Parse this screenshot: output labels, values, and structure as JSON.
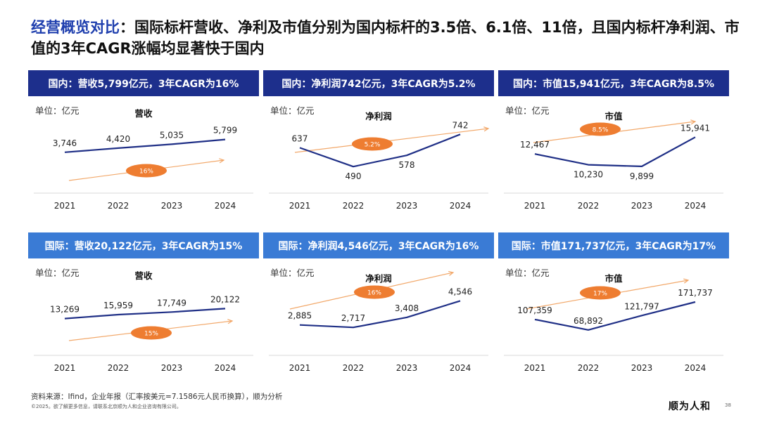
{
  "title": {
    "highlight": "经营概览对比",
    "rest": "：国际标杆营收、净利及市值分别为国内标杆的3.5倍、6.1倍、11倍，且国内标杆净利润、市值的3年CAGR涨幅均显著快于国内"
  },
  "colors": {
    "domestic_header": "#1d2f8c",
    "intl_header": "#3a7bd5",
    "line": "#1f2f86",
    "arrow": "#f2a86a",
    "badge": "#ee7d31"
  },
  "unit_label": "单位：亿元",
  "chart_data": [
    {
      "type": "line",
      "group": "domestic",
      "header": "国内：营收5,799亿元，3年CAGR为16%",
      "title": "营收",
      "categories": [
        "2021",
        "2022",
        "2023",
        "2024"
      ],
      "values": [
        3746,
        4420,
        5035,
        5799
      ],
      "labels": [
        "3,746",
        "4,420",
        "5,035",
        "5,799"
      ],
      "cagr_label": "16%",
      "ylim": [
        0,
        7000
      ]
    },
    {
      "type": "line",
      "group": "domestic",
      "header": "国内：净利润742亿元，3年CAGR为5.2%",
      "title": "净利润",
      "categories": [
        "2021",
        "2022",
        "2023",
        "2024"
      ],
      "values": [
        637,
        490,
        578,
        742
      ],
      "labels": [
        "637",
        "490",
        "578",
        "742"
      ],
      "cagr_label": "5.2%",
      "ylim": [
        420,
        760
      ]
    },
    {
      "type": "line",
      "group": "domestic",
      "header": "国内：市值15,941亿元，3年CAGR为8.5%",
      "title": "市值",
      "categories": [
        "2021",
        "2022",
        "2023",
        "2024"
      ],
      "values": [
        12467,
        10230,
        9899,
        15941
      ],
      "labels": [
        "12,467",
        "10,230",
        "9,899",
        "15,941"
      ],
      "cagr_label": "8.5%",
      "ylim": [
        8000,
        17000
      ]
    },
    {
      "type": "line",
      "group": "international",
      "header": "国际：营收20,122亿元，3年CAGR为15%",
      "title": "营收",
      "categories": [
        "2021",
        "2022",
        "2023",
        "2024"
      ],
      "values": [
        13269,
        15959,
        17749,
        20122
      ],
      "labels": [
        "13,269",
        "15,959",
        "17,749",
        "20,122"
      ],
      "cagr_label": "15%",
      "ylim": [
        0,
        30000
      ]
    },
    {
      "type": "line",
      "group": "international",
      "header": "国际：净利润4,546亿元，3年CAGR为16%",
      "title": "净利润",
      "categories": [
        "2021",
        "2022",
        "2023",
        "2024"
      ],
      "values": [
        2885,
        2717,
        3408,
        4546
      ],
      "labels": [
        "2,885",
        "2,717",
        "3,408",
        "4,546"
      ],
      "cagr_label": "16%",
      "ylim": [
        2000,
        5000
      ]
    },
    {
      "type": "line",
      "group": "international",
      "header": "国际：市值171,737亿元，3年CAGR为17%",
      "title": "市值",
      "categories": [
        "2021",
        "2022",
        "2023",
        "2024"
      ],
      "values": [
        107359,
        68892,
        121797,
        171737
      ],
      "labels": [
        "107,359",
        "68,892",
        "121,797",
        "171,737"
      ],
      "cagr_label": "17%",
      "ylim": [
        40000,
        200000
      ]
    }
  ],
  "footer": {
    "source": "资料来源：Ifind，企业年报（汇率按美元=7.1586元人民币换算），顺为分析",
    "copyright": "©2025。欲了解更多信息，请联系北京顺为人和企业咨询有限公司。",
    "logo_text": "顺为人和",
    "page_number": "38"
  }
}
